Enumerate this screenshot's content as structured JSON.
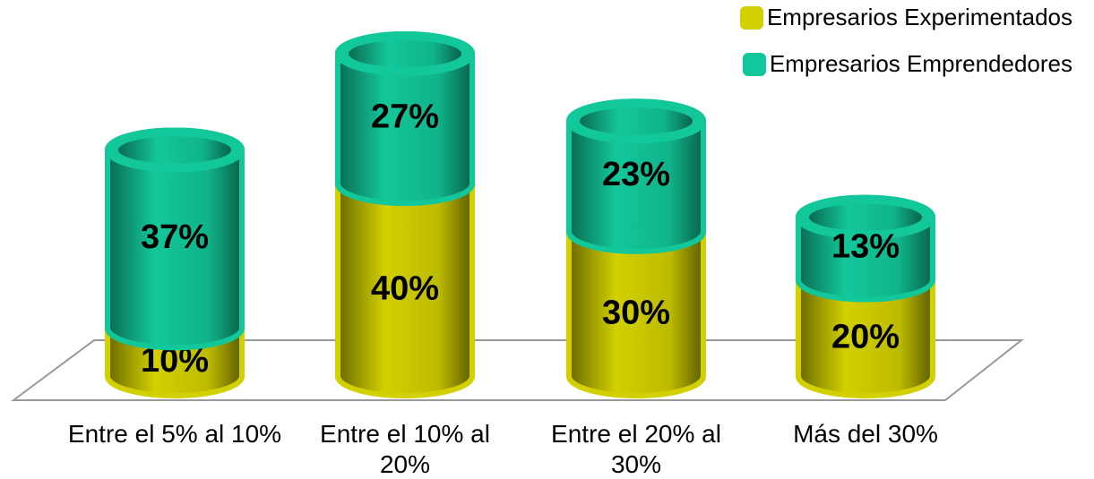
{
  "chart_data": {
    "type": "stacked-cylinder",
    "categories": [
      "Entre el 5% al 10%",
      "Entre el 10% al 20%",
      "Entre el 20% al 30%",
      "Más del 30%"
    ],
    "series": [
      {
        "name": "Empresarios Experimentados",
        "color": "#d2d000",
        "values": [
          10,
          40,
          30,
          20
        ],
        "value_labels": [
          "10%",
          "40%",
          "30%",
          "20%"
        ]
      },
      {
        "name": "Empresarios Emprendedores",
        "color": "#12c89a",
        "values": [
          37,
          27,
          23,
          13
        ],
        "value_labels": [
          "37%",
          "27%",
          "23%",
          "13%"
        ]
      }
    ],
    "legend": "top-right"
  }
}
